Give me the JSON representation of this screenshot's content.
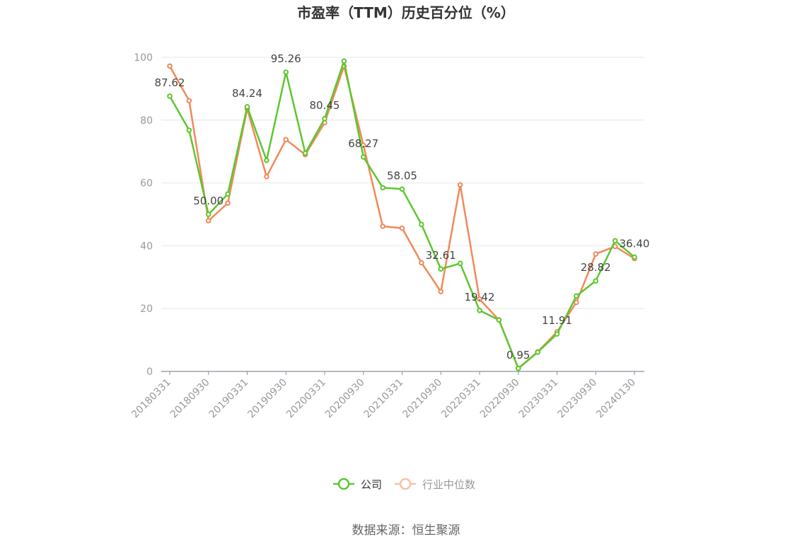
{
  "chart_data": {
    "type": "line",
    "title": "市盈率（TTM）历史百分位（%）",
    "source": "数据来源：恒生聚源",
    "ylim": [
      0,
      100
    ],
    "yticks": [
      0,
      20,
      40,
      60,
      80,
      100
    ],
    "grid": true,
    "legend_position": "bottom",
    "x": [
      "20180331",
      "20180630",
      "20180930",
      "20181231",
      "20190331",
      "20190630",
      "20190930",
      "20191231",
      "20200331",
      "20200630",
      "20200930",
      "20201231",
      "20210331",
      "20210630",
      "20210930",
      "20211231",
      "20220331",
      "20220630",
      "20220930",
      "20221231",
      "20230331",
      "20230630",
      "20230930",
      "20231231",
      "20240130"
    ],
    "xtick_labels": [
      "20180331",
      "20180930",
      "20190331",
      "20190930",
      "20200331",
      "20200930",
      "20210331",
      "20210930",
      "20220331",
      "20220930",
      "20230331",
      "20230930",
      "20240130"
    ],
    "series": [
      {
        "name": "公司",
        "color": "#5cc72e",
        "values": [
          87.62,
          76.8,
          50.0,
          56.5,
          84.24,
          67.2,
          95.26,
          69.5,
          80.45,
          98.8,
          68.27,
          58.5,
          58.05,
          46.8,
          32.61,
          34.4,
          19.42,
          16.4,
          0.95,
          6.1,
          11.91,
          24.0,
          28.82,
          41.6,
          36.4
        ],
        "labels": {
          "0": "87.62",
          "2": "50.00",
          "4": "84.24",
          "6": "95.26",
          "8": "80.45",
          "10": "68.27",
          "12": "58.05",
          "14": "32.61",
          "16": "19.42",
          "18": "0.95",
          "20": "11.91",
          "22": "28.82",
          "24": "36.40"
        }
      },
      {
        "name": "行业中位数",
        "color": "#f0895a",
        "values": [
          97.2,
          86.2,
          48.0,
          53.6,
          83.6,
          62.0,
          73.8,
          69.0,
          79.2,
          97.2,
          72.0,
          46.2,
          45.6,
          34.6,
          25.4,
          59.4,
          23.0,
          16.4,
          1.0,
          6.2,
          12.6,
          22.0,
          37.4,
          39.8,
          35.9
        ]
      }
    ]
  }
}
